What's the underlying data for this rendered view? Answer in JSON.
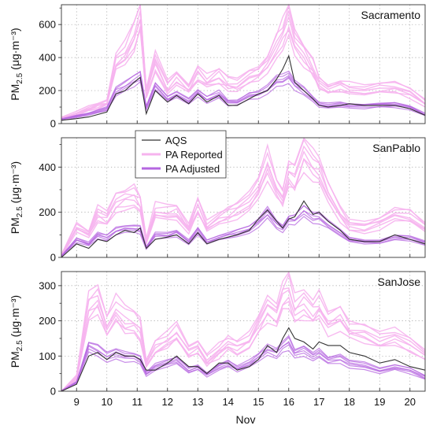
{
  "legend": {
    "placement": "inside-middle-left",
    "entries": [
      {
        "label": "AQS",
        "color": "#333333"
      },
      {
        "label": "PA Reported",
        "color": "#f6b3ee"
      },
      {
        "label": "PA Adjusted",
        "color": "#b566e0"
      }
    ]
  },
  "x_axis": {
    "label": "Nov",
    "ticks": [
      "9",
      "10",
      "11",
      "12",
      "13",
      "14",
      "15",
      "16",
      "17",
      "18",
      "19",
      "20"
    ]
  },
  "colors": {
    "aqs": "#333333",
    "pa_reported": "#f6b3ee",
    "pa_adjusted": "#b566e0",
    "grid": "#9a9a9a"
  },
  "chart_data": [
    {
      "type": "line",
      "title": "Sacramento",
      "ylabel_main": "PM",
      "ylabel_sub": "2.5",
      "ylabel_units": "(μg·m⁻³)",
      "xlim": [
        8.5,
        20.5
      ],
      "ylim": [
        0,
        720
      ],
      "yticks": [
        0,
        200,
        400,
        600
      ],
      "grid": true,
      "x": [
        8.5,
        9.0,
        9.4,
        9.7,
        10.0,
        10.3,
        10.6,
        10.9,
        11.1,
        11.3,
        11.6,
        12.0,
        12.3,
        12.7,
        13.0,
        13.3,
        13.7,
        14.0,
        14.3,
        14.7,
        15.0,
        15.3,
        15.6,
        15.8,
        16.0,
        16.2,
        16.5,
        16.8,
        17.0,
        17.3,
        17.7,
        18.0,
        18.5,
        19.0,
        19.5,
        20.0,
        20.5
      ],
      "series": [
        {
          "name": "AQS",
          "values": [
            20,
            30,
            40,
            55,
            70,
            180,
            200,
            250,
            280,
            60,
            200,
            130,
            170,
            120,
            180,
            130,
            170,
            110,
            110,
            150,
            180,
            200,
            270,
            330,
            410,
            250,
            200,
            150,
            110,
            100,
            110,
            120,
            110,
            110,
            110,
            90,
            50
          ]
        },
        {
          "name": "PA Reported",
          "values": [
            35,
            60,
            90,
            110,
            130,
            380,
            450,
            560,
            690,
            200,
            400,
            230,
            290,
            220,
            310,
            260,
            300,
            250,
            240,
            300,
            320,
            380,
            490,
            560,
            660,
            520,
            440,
            350,
            260,
            220,
            240,
            220,
            210,
            220,
            220,
            190,
            130
          ]
        },
        {
          "name": "PA Adjusted",
          "values": [
            25,
            45,
            60,
            75,
            90,
            200,
            230,
            270,
            290,
            100,
            230,
            150,
            180,
            140,
            190,
            150,
            180,
            130,
            130,
            170,
            180,
            210,
            260,
            270,
            290,
            240,
            200,
            150,
            120,
            110,
            120,
            110,
            110,
            115,
            115,
            100,
            55
          ]
        }
      ]
    },
    {
      "type": "line",
      "title": "SanPablo",
      "ylabel_main": "PM",
      "ylabel_sub": "2.5",
      "ylabel_units": "(μg·m⁻³)",
      "xlim": [
        8.5,
        20.5
      ],
      "ylim": [
        0,
        530
      ],
      "yticks": [
        0,
        200,
        400
      ],
      "grid": true,
      "x": [
        8.5,
        9.0,
        9.4,
        9.7,
        10.0,
        10.3,
        10.6,
        10.9,
        11.1,
        11.3,
        11.6,
        12.0,
        12.3,
        12.7,
        13.0,
        13.3,
        13.7,
        14.0,
        14.3,
        14.7,
        15.0,
        15.3,
        15.6,
        15.8,
        16.0,
        16.2,
        16.5,
        16.8,
        17.0,
        17.3,
        17.7,
        18.0,
        18.5,
        19.0,
        19.5,
        20.0,
        20.5
      ],
      "series": [
        {
          "name": "AQS",
          "values": [
            0,
            60,
            40,
            80,
            70,
            100,
            120,
            110,
            130,
            40,
            80,
            90,
            100,
            60,
            110,
            60,
            80,
            90,
            100,
            120,
            170,
            210,
            160,
            130,
            170,
            180,
            250,
            190,
            200,
            160,
            120,
            80,
            70,
            70,
            100,
            80,
            60
          ]
        },
        {
          "name": "PA Reported",
          "values": [
            10,
            140,
            110,
            200,
            180,
            250,
            270,
            280,
            250,
            80,
            210,
            200,
            210,
            130,
            240,
            140,
            180,
            200,
            220,
            260,
            330,
            430,
            320,
            280,
            380,
            360,
            480,
            420,
            400,
            300,
            200,
            150,
            140,
            160,
            200,
            190,
            140
          ]
        },
        {
          "name": "PA Adjusted",
          "values": [
            5,
            80,
            60,
            100,
            90,
            120,
            130,
            130,
            125,
            45,
            100,
            100,
            110,
            70,
            120,
            70,
            90,
            100,
            110,
            130,
            160,
            200,
            150,
            130,
            170,
            170,
            210,
            180,
            180,
            150,
            110,
            80,
            70,
            70,
            90,
            85,
            65
          ]
        }
      ]
    },
    {
      "type": "line",
      "title": "SanJose",
      "ylabel_main": "PM",
      "ylabel_sub": "2.5",
      "ylabel_units": "(μg·m⁻³)",
      "xlim": [
        8.5,
        20.5
      ],
      "ylim": [
        0,
        340
      ],
      "yticks": [
        0,
        100,
        200,
        300
      ],
      "grid": true,
      "x": [
        8.5,
        9.0,
        9.4,
        9.7,
        10.0,
        10.3,
        10.6,
        10.9,
        11.1,
        11.3,
        11.6,
        12.0,
        12.3,
        12.7,
        13.0,
        13.3,
        13.7,
        14.0,
        14.3,
        14.7,
        15.0,
        15.3,
        15.6,
        15.8,
        16.0,
        16.2,
        16.5,
        16.8,
        17.0,
        17.3,
        17.7,
        18.0,
        18.5,
        19.0,
        19.5,
        20.0,
        20.5
      ],
      "series": [
        {
          "name": "AQS",
          "values": [
            0,
            20,
            100,
            110,
            90,
            110,
            100,
            100,
            90,
            60,
            60,
            80,
            100,
            70,
            70,
            50,
            80,
            80,
            60,
            70,
            90,
            130,
            110,
            150,
            180,
            150,
            140,
            120,
            140,
            130,
            130,
            110,
            100,
            80,
            90,
            70,
            60
          ]
        },
        {
          "name": "PA Reported",
          "values": [
            0,
            40,
            250,
            270,
            190,
            240,
            210,
            200,
            180,
            80,
            130,
            150,
            170,
            120,
            130,
            90,
            120,
            140,
            130,
            150,
            200,
            250,
            230,
            280,
            300,
            240,
            260,
            230,
            250,
            200,
            220,
            180,
            170,
            150,
            160,
            140,
            110
          ]
        },
        {
          "name": "PA Adjusted",
          "values": [
            0,
            25,
            130,
            120,
            100,
            110,
            100,
            100,
            90,
            50,
            70,
            80,
            90,
            60,
            70,
            50,
            70,
            80,
            65,
            80,
            100,
            120,
            110,
            130,
            140,
            110,
            120,
            100,
            110,
            90,
            95,
            80,
            75,
            60,
            70,
            60,
            40
          ]
        }
      ]
    }
  ]
}
